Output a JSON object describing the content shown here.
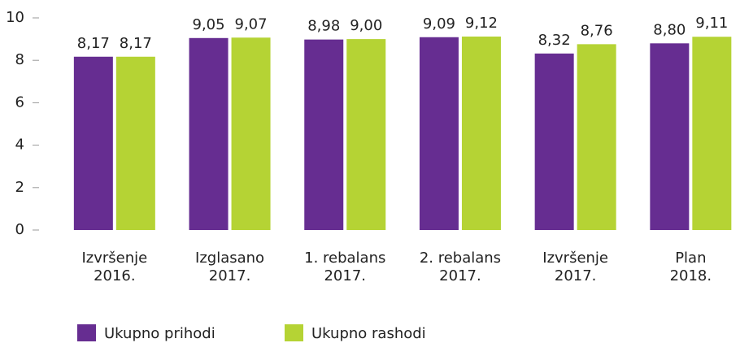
{
  "chart_data": {
    "type": "bar",
    "categories": [
      [
        "Izvršenje",
        "2016."
      ],
      [
        "Izglasano",
        "2017."
      ],
      [
        "1. rebalans",
        "2017."
      ],
      [
        "2. rebalans",
        "2017."
      ],
      [
        "Izvršenje",
        "2017."
      ],
      [
        "Plan",
        "2018."
      ]
    ],
    "series": [
      {
        "name": "Ukupno prihodi",
        "color": "#662d91",
        "values": [
          8.17,
          9.05,
          8.98,
          9.09,
          8.32,
          8.8
        ],
        "value_labels": [
          "8,17",
          "9,05",
          "8,98",
          "9,09",
          "8,32",
          "8,80"
        ]
      },
      {
        "name": "Ukupno rashodi",
        "color": "#b5d334",
        "values": [
          8.17,
          9.07,
          9.0,
          9.12,
          8.76,
          9.11
        ],
        "value_labels": [
          "8,17",
          "9,07",
          "9,00",
          "9,12",
          "8,76",
          "9,11"
        ]
      }
    ],
    "ylim": [
      0,
      10
    ],
    "yticks": [
      0,
      2,
      4,
      6,
      8,
      10
    ],
    "grid": false,
    "legend": "bottom"
  }
}
